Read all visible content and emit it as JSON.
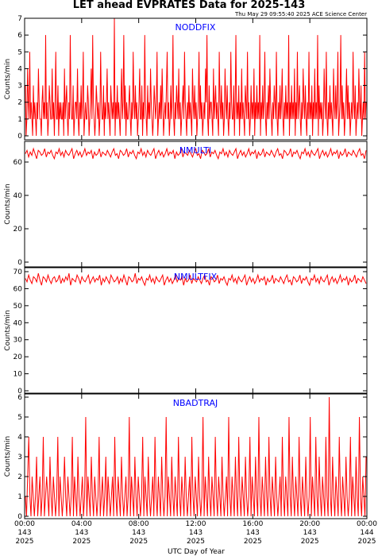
{
  "title": "LET ahead EVPRATES Data for 2025-143",
  "timestamp": "Thu May 29 09:55:40 2025 ACE Science Center",
  "xlabel": "UTC Day of Year",
  "x_ticks": [
    {
      "time": "00:00",
      "doy": "143",
      "year": "2025"
    },
    {
      "time": "04:00",
      "doy": "143",
      "year": "2025"
    },
    {
      "time": "08:00",
      "doy": "143",
      "year": "2025"
    },
    {
      "time": "12:00",
      "doy": "143",
      "year": "2025"
    },
    {
      "time": "16:00",
      "doy": "143",
      "year": "2025"
    },
    {
      "time": "20:00",
      "doy": "143",
      "year": "2025"
    },
    {
      "time": "00:00",
      "doy": "144",
      "year": "2025"
    }
  ],
  "colors": {
    "trace": "#ff0000",
    "panel_label": "#0000ff",
    "axis": "#000000"
  },
  "chart_data": [
    {
      "type": "line",
      "series_label": "NODDFIX",
      "ylabel": "Counts/min",
      "ylim": [
        0,
        7
      ],
      "yticks": [
        0,
        1,
        2,
        3,
        4,
        5,
        6,
        7
      ],
      "xlim_hours": [
        0,
        24
      ],
      "values": [
        3,
        0,
        1,
        4,
        2,
        1,
        5,
        1,
        2,
        1,
        0,
        3,
        1,
        2,
        1,
        0,
        2,
        1,
        4,
        2,
        1,
        1,
        0,
        2,
        3,
        1,
        2,
        1,
        6,
        1,
        2,
        0,
        1,
        3,
        2,
        1,
        1,
        4,
        1,
        2,
        0,
        2,
        5,
        1,
        1,
        3,
        0,
        2,
        1,
        2,
        1,
        1,
        2,
        0,
        4,
        1,
        2,
        3,
        1,
        0,
        2,
        1,
        6,
        2,
        1,
        1,
        3,
        0,
        1,
        2,
        2,
        1,
        4,
        1,
        0,
        2,
        1,
        3,
        1,
        2,
        5,
        0,
        1,
        2,
        1,
        1,
        3,
        2,
        0,
        1,
        2,
        4,
        1,
        6,
        2,
        1,
        0,
        1,
        3,
        2,
        1,
        2,
        0,
        1,
        5,
        2,
        1,
        1,
        3,
        0,
        2,
        1,
        2,
        4,
        1,
        2,
        1,
        0,
        3,
        2,
        1,
        2,
        1,
        7,
        0,
        2,
        1,
        3,
        1,
        2,
        1,
        0,
        2,
        4,
        1,
        2,
        6,
        1,
        3,
        0,
        2,
        1,
        1,
        2,
        3,
        1,
        0,
        2,
        1,
        5,
        2,
        1,
        3,
        1,
        2,
        0,
        1,
        2,
        4,
        1,
        1,
        3,
        0,
        2,
        1,
        6,
        2,
        1,
        0,
        3,
        1,
        2,
        1,
        4,
        2,
        1,
        0,
        1,
        3,
        2,
        1,
        2,
        5,
        0,
        1,
        2,
        1,
        3,
        1,
        4,
        2,
        0,
        1,
        2,
        1,
        3,
        5,
        1,
        2,
        0,
        1,
        3,
        1,
        2,
        6,
        1,
        0,
        2,
        1,
        3,
        2,
        1,
        4,
        1,
        2,
        0,
        1,
        2,
        3,
        1,
        5,
        2,
        1,
        0,
        2,
        1,
        3,
        1,
        2,
        1,
        0,
        4,
        2,
        1,
        3,
        1,
        2,
        0,
        1,
        2,
        5,
        1,
        3,
        1,
        2,
        0,
        1,
        2,
        1,
        4,
        2,
        6,
        1,
        0,
        3,
        1,
        2,
        2,
        1,
        0,
        4,
        1,
        2,
        3,
        1,
        2,
        1,
        0,
        5,
        2,
        1,
        3,
        1,
        2,
        0,
        1,
        4,
        2,
        1,
        3,
        1,
        0,
        2,
        1,
        5,
        2,
        1,
        1,
        3,
        0,
        2,
        6,
        1,
        2,
        1,
        3,
        0,
        2,
        1,
        4,
        1,
        2,
        1,
        0,
        3,
        2,
        1,
        5,
        1,
        2,
        0,
        1,
        3,
        1,
        2,
        1,
        4,
        0,
        2,
        1,
        3,
        1,
        2,
        1,
        6,
        0,
        2,
        1,
        3,
        1,
        2,
        5,
        1,
        0,
        2,
        1,
        3,
        1,
        4,
        2,
        1,
        0,
        2,
        1,
        3,
        2,
        1,
        5,
        1,
        0,
        2,
        1,
        3,
        1,
        2,
        4,
        1,
        0,
        2,
        1,
        3,
        1,
        2,
        1,
        6,
        0,
        2,
        1,
        3,
        1,
        2,
        1,
        4,
        0,
        2,
        1,
        5,
        1,
        2,
        3,
        1,
        0,
        2,
        1,
        4,
        2,
        1,
        3,
        1,
        0,
        2,
        1,
        5,
        1,
        2,
        1,
        3,
        0,
        2,
        1,
        4,
        1,
        2,
        1,
        6,
        0,
        3,
        1,
        2,
        1,
        2,
        0,
        1,
        4,
        2,
        1,
        5,
        1,
        0,
        2,
        1,
        3,
        1,
        2,
        1,
        0,
        4,
        2,
        1,
        3,
        1,
        2,
        5,
        0,
        1,
        2,
        6,
        1,
        3,
        1,
        2,
        0,
        1,
        2,
        4,
        1,
        3,
        1,
        2,
        0,
        1,
        2,
        1,
        5,
        2,
        1,
        3,
        0,
        1,
        2,
        1,
        4,
        2,
        1,
        3,
        0,
        1,
        2,
        1,
        5,
        1,
        2
      ]
    },
    {
      "type": "line",
      "series_label": "NMULTI",
      "ylabel": "Counts/min",
      "ylim": [
        0,
        70
      ],
      "yticks": [
        0,
        20,
        40,
        60
      ],
      "xlim_hours": [
        0,
        24
      ],
      "values": [
        65,
        67,
        63,
        66,
        64,
        68,
        65,
        62,
        67,
        66,
        64,
        65,
        68,
        63,
        66,
        65,
        67,
        64,
        62,
        66,
        65,
        68,
        64,
        66,
        63,
        67,
        65,
        64,
        66,
        68,
        62,
        65,
        67,
        64,
        66,
        63,
        65,
        68,
        64,
        66,
        65,
        67,
        62,
        66,
        64,
        65,
        68,
        63,
        66,
        65,
        64,
        67,
        65,
        63,
        66,
        68,
        64,
        65,
        62,
        67,
        66,
        64,
        65,
        68,
        63,
        66,
        65,
        67,
        64,
        62,
        66,
        65,
        68,
        64,
        66,
        63,
        67,
        65,
        64,
        66,
        68,
        62,
        65,
        67,
        64,
        66,
        63,
        65,
        68,
        64,
        66,
        65,
        67,
        62,
        66,
        64,
        65,
        68,
        63,
        66,
        65,
        64,
        67,
        65,
        63,
        66,
        68,
        64,
        65,
        62,
        67,
        66,
        64,
        65,
        68,
        63,
        66,
        65,
        67,
        64,
        62,
        66,
        65,
        68,
        64,
        66,
        63,
        67,
        65,
        64,
        66,
        68,
        62,
        65,
        67,
        64,
        66,
        63,
        65,
        68,
        64,
        66,
        65,
        67,
        62,
        66,
        64,
        65,
        68,
        63,
        66,
        65,
        64,
        67,
        65,
        63,
        66,
        68,
        64,
        65,
        62,
        67,
        66,
        64,
        65,
        68,
        63,
        66,
        65,
        67,
        64,
        62,
        66,
        65,
        68,
        64,
        66,
        63,
        67,
        65,
        64,
        66,
        68,
        62,
        65,
        67,
        64,
        66,
        63,
        65,
        68,
        64,
        66,
        65,
        67,
        62,
        66,
        64,
        65,
        68,
        63,
        66,
        65,
        64,
        67,
        65,
        63,
        66,
        68,
        64,
        65,
        62,
        67
      ]
    },
    {
      "type": "line",
      "series_label": "NMULTFIX",
      "ylabel": "Counts/min",
      "ylim": [
        0,
        70
      ],
      "yticks": [
        0,
        10,
        20,
        30,
        40,
        50,
        60,
        70
      ],
      "xlim_hours": [
        0,
        24
      ],
      "values": [
        66,
        64,
        68,
        65,
        63,
        67,
        66,
        64,
        69,
        65,
        62,
        67,
        66,
        64,
        68,
        65,
        63,
        66,
        67,
        64,
        65,
        68,
        63,
        66,
        64,
        67,
        65,
        69,
        62,
        66,
        65,
        64,
        68,
        66,
        63,
        67,
        65,
        64,
        66,
        68,
        63,
        65,
        67,
        64,
        66,
        65,
        68,
        62,
        66,
        64,
        67,
        65,
        63,
        68,
        66,
        64,
        65,
        67,
        63,
        66,
        64,
        68,
        65,
        62,
        67,
        66,
        64,
        65,
        69,
        63,
        66,
        65,
        67,
        64,
        62,
        66,
        65,
        68,
        64,
        66,
        63,
        67,
        65,
        64,
        66,
        68,
        62,
        65,
        67,
        64,
        66,
        63,
        65,
        68,
        64,
        66,
        65,
        67,
        62,
        66,
        64,
        65,
        68,
        63,
        66,
        65,
        64,
        67,
        65,
        63,
        66,
        68,
        64,
        65,
        62,
        67,
        66,
        64,
        65,
        68,
        63,
        66,
        65,
        67,
        64,
        62,
        66,
        65,
        68,
        64,
        66,
        63,
        67,
        65,
        64,
        66,
        68,
        62,
        65,
        67,
        64,
        66,
        63,
        65,
        68,
        64,
        66,
        65,
        67,
        62,
        66,
        64,
        65,
        68,
        63,
        66,
        65,
        64,
        67,
        65,
        63,
        66,
        68,
        64,
        65,
        62,
        67,
        66,
        64,
        65,
        68,
        63,
        66,
        65,
        67,
        64,
        62,
        66,
        65,
        68,
        64,
        66,
        63,
        67,
        65,
        64,
        66,
        68,
        62,
        65,
        67,
        64,
        66,
        63,
        65,
        68,
        64,
        66,
        65,
        67,
        62,
        66,
        64,
        65,
        68,
        63,
        66,
        65,
        64,
        67,
        65,
        63
      ]
    },
    {
      "type": "line",
      "series_label": "NBADTRAJ",
      "ylabel": "Counts/min",
      "ylim": [
        0,
        6
      ],
      "yticks": [
        0,
        1,
        2,
        3,
        4,
        5,
        6
      ],
      "xlim_hours": [
        0,
        24
      ],
      "values": [
        1,
        0,
        2,
        4,
        1,
        0,
        2,
        1,
        0,
        1,
        3,
        0,
        1,
        2,
        0,
        1,
        4,
        0,
        1,
        2,
        1,
        0,
        3,
        1,
        0,
        2,
        1,
        0,
        1,
        4,
        0,
        2,
        1,
        0,
        1,
        3,
        1,
        0,
        2,
        1,
        0,
        1,
        4,
        0,
        2,
        1,
        0,
        3,
        1,
        0,
        1,
        2,
        0,
        1,
        5,
        0,
        2,
        1,
        0,
        3,
        1,
        0,
        2,
        1,
        0,
        1,
        4,
        0,
        1,
        2,
        0,
        1,
        3,
        0,
        2,
        1,
        0,
        1,
        2,
        0,
        4,
        1,
        0,
        2,
        1,
        0,
        3,
        1,
        0,
        1,
        2,
        0,
        1,
        5,
        0,
        2,
        1,
        0,
        3,
        1,
        0,
        2,
        1,
        0,
        1,
        4,
        0,
        2,
        1,
        0,
        3,
        1,
        0,
        1,
        2,
        0,
        4,
        1,
        0,
        2,
        1,
        0,
        3,
        1,
        0,
        1,
        5,
        0,
        2,
        1,
        0,
        3,
        1,
        0,
        2,
        1,
        0,
        4,
        1,
        0,
        2,
        1,
        0,
        3,
        1,
        0,
        1,
        2,
        0,
        4,
        1,
        0,
        2,
        1,
        0,
        3,
        1,
        0,
        1,
        5,
        0,
        2,
        1,
        0,
        3,
        1,
        0,
        2,
        1,
        0,
        4,
        1,
        0,
        2,
        1,
        0,
        3,
        1,
        0,
        1,
        2,
        0,
        5,
        1,
        0,
        2,
        1,
        0,
        3,
        1,
        0,
        4,
        1,
        0,
        2,
        1,
        0,
        3,
        1,
        0,
        1,
        4,
        0,
        2,
        1,
        0,
        3,
        1,
        0,
        5,
        1,
        0,
        2,
        1,
        0,
        3,
        1,
        0,
        4,
        1,
        0,
        2,
        1,
        0,
        3,
        1,
        0,
        1,
        2,
        0,
        4,
        1,
        0,
        2,
        1,
        0,
        5,
        1,
        0,
        3,
        1,
        0,
        2,
        1,
        0,
        4,
        1,
        0,
        2,
        1,
        0,
        3,
        1,
        0,
        1,
        5,
        0,
        2,
        1,
        0,
        4,
        1,
        0,
        3,
        1,
        0,
        2,
        1,
        0,
        4,
        1,
        0,
        6,
        1,
        0,
        3,
        1,
        0,
        2,
        1,
        0,
        4,
        1,
        0,
        2,
        1,
        0,
        3,
        1,
        0,
        1,
        4,
        0,
        2,
        1,
        0,
        3,
        1,
        0,
        5,
        1,
        0,
        2,
        1,
        0,
        3
      ]
    }
  ]
}
